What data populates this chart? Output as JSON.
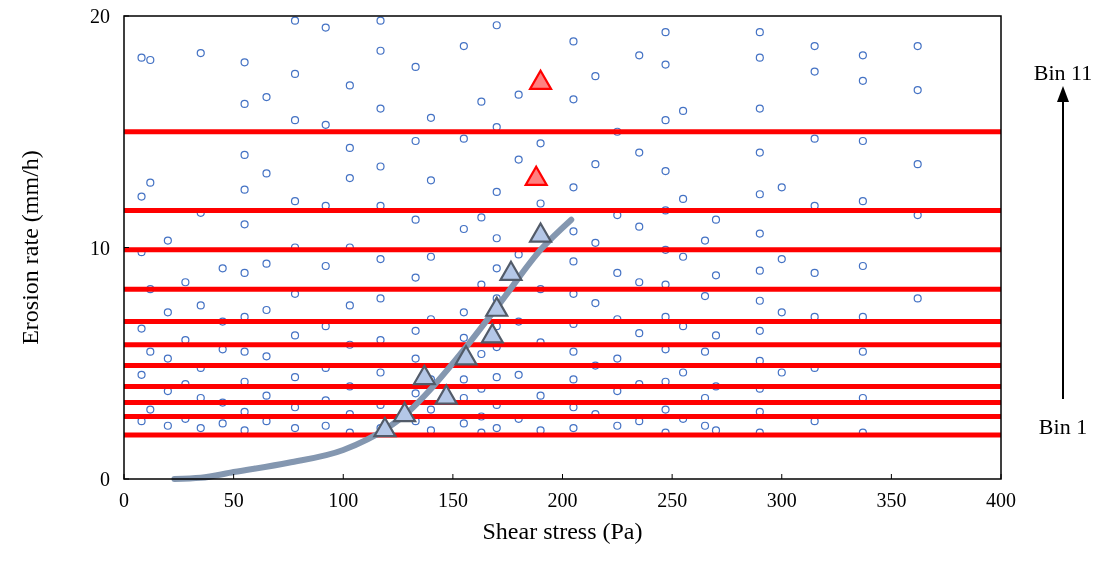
{
  "chart_data": {
    "type": "scatter",
    "xlabel": "Shear stress (Pa)",
    "ylabel": "Erosion rate (mm/h)",
    "xlim": [
      0,
      400
    ],
    "xticks": [
      0,
      50,
      100,
      150,
      200,
      250,
      300,
      350,
      400
    ],
    "ylim": [
      0,
      20
    ],
    "yticks": [
      0,
      10,
      20
    ],
    "grid": false,
    "ref_lines": [
      {
        "axis": "y",
        "value": 1.9,
        "color": "#ff0000"
      },
      {
        "axis": "y",
        "value": 2.7,
        "color": "#ff0000"
      },
      {
        "axis": "y",
        "value": 3.3,
        "color": "#ff0000"
      },
      {
        "axis": "y",
        "value": 4,
        "color": "#ff0000"
      },
      {
        "axis": "y",
        "value": 4.9,
        "color": "#ff0000"
      },
      {
        "axis": "y",
        "value": 5.8,
        "color": "#ff0000"
      },
      {
        "axis": "y",
        "value": 6.8,
        "color": "#ff0000"
      },
      {
        "axis": "y",
        "value": 8.2,
        "color": "#ff0000"
      },
      {
        "axis": "y",
        "value": 9.9,
        "color": "#ff0000"
      },
      {
        "axis": "y",
        "value": 11.6,
        "color": "#ff0000"
      },
      {
        "axis": "y",
        "value": 15,
        "color": "#ff0000"
      }
    ],
    "annotations": [
      "Bin 11",
      "Bin 1"
    ],
    "series": [
      {
        "marker": "circle",
        "color": "#4472c4",
        "x": [
          8,
          8,
          8,
          8,
          8,
          8,
          12,
          12,
          12,
          12,
          12,
          20,
          20,
          20,
          20,
          20,
          28,
          28,
          28,
          28,
          35,
          35,
          35,
          35,
          35,
          35,
          45,
          45,
          45,
          45,
          45,
          55,
          55,
          55,
          55,
          55,
          55,
          55,
          55,
          55,
          55,
          55,
          65,
          65,
          65,
          65,
          65,
          65,
          65,
          78,
          78,
          78,
          78,
          78,
          78,
          78,
          78,
          78,
          78,
          92,
          92,
          92,
          92,
          92,
          92,
          92,
          92,
          103,
          103,
          103,
          103,
          103,
          103,
          103,
          103,
          103,
          117,
          117,
          117,
          117,
          117,
          117,
          117,
          117,
          117,
          117,
          117,
          133,
          133,
          133,
          133,
          133,
          133,
          133,
          133,
          140,
          140,
          140,
          140,
          140,
          140,
          140,
          155,
          155,
          155,
          155,
          155,
          155,
          155,
          155,
          163,
          163,
          163,
          163,
          163,
          163,
          163,
          170,
          170,
          170,
          170,
          170,
          170,
          170,
          170,
          170,
          170,
          170,
          180,
          180,
          180,
          180,
          180,
          180,
          190,
          190,
          190,
          190,
          190,
          190,
          205,
          205,
          205,
          205,
          205,
          205,
          205,
          205,
          205,
          205,
          205,
          215,
          215,
          215,
          215,
          215,
          215,
          225,
          225,
          225,
          225,
          225,
          225,
          225,
          235,
          235,
          235,
          235,
          235,
          235,
          235,
          247,
          247,
          247,
          247,
          247,
          247,
          247,
          247,
          247,
          247,
          247,
          247,
          255,
          255,
          255,
          255,
          255,
          255,
          265,
          265,
          265,
          265,
          265,
          270,
          270,
          270,
          270,
          270,
          290,
          290,
          290,
          290,
          290,
          290,
          290,
          290,
          290,
          290,
          290,
          290,
          290,
          300,
          300,
          300,
          300,
          315,
          315,
          315,
          315,
          315,
          315,
          315,
          315,
          337,
          337,
          337,
          337,
          337,
          337,
          337,
          337,
          337,
          362,
          362,
          362,
          362,
          362
        ],
        "values": [
          2.5,
          4.5,
          6.5,
          9.8,
          12.2,
          18.2,
          3,
          5.5,
          8.2,
          12.8,
          18.1,
          2.3,
          3.8,
          5.2,
          7.2,
          10.3,
          2.6,
          4.1,
          6,
          8.5,
          2.2,
          3.5,
          4.8,
          7.5,
          11.5,
          18.4,
          2.4,
          3.3,
          5.6,
          6.8,
          9.1,
          2.1,
          2.9,
          4.2,
          5.5,
          7,
          8.9,
          11,
          12.5,
          14,
          16.2,
          18,
          2.5,
          3.6,
          5.3,
          7.3,
          9.3,
          13.2,
          16.5,
          2.2,
          3.1,
          4.4,
          6.2,
          8,
          10,
          12,
          15.5,
          17.5,
          19.8,
          2.3,
          3.4,
          4.8,
          6.6,
          9.2,
          11.8,
          15.3,
          19.5,
          2,
          2.8,
          4,
          5.8,
          7.5,
          10,
          13,
          14.3,
          17,
          2.2,
          3.2,
          4.6,
          6,
          7.8,
          9.5,
          11.8,
          13.5,
          16,
          18.5,
          19.8,
          2.5,
          3.7,
          5.2,
          6.4,
          8.7,
          11.2,
          14.6,
          17.8,
          2.1,
          3,
          4.3,
          6.9,
          9.6,
          12.9,
          15.6,
          2.4,
          3.5,
          4.3,
          6.1,
          7.2,
          10.8,
          14.7,
          18.7,
          2,
          2.7,
          3.9,
          5.4,
          8.4,
          11.3,
          16.3,
          2.2,
          3.2,
          4.4,
          5.7,
          6.6,
          7.8,
          9.1,
          10.4,
          12.4,
          15.2,
          19.6,
          2.6,
          4.5,
          6.8,
          9.7,
          13.8,
          16.6,
          2.1,
          3.6,
          5.9,
          8.2,
          11.9,
          14.5,
          2.2,
          3.1,
          4.3,
          5.5,
          6.7,
          8,
          9.4,
          10.7,
          12.6,
          16.4,
          18.9,
          2.8,
          4.9,
          7.6,
          10.2,
          13.6,
          17.4,
          2.3,
          3.8,
          5.2,
          6.9,
          8.9,
          11.4,
          15,
          2.5,
          4.1,
          6.3,
          8.5,
          10.9,
          14.1,
          18.3,
          2,
          3,
          4.2,
          5.6,
          7,
          8.4,
          9.9,
          11.6,
          13.3,
          15.5,
          17.9,
          19.3,
          2.6,
          4.6,
          6.6,
          9.6,
          12.1,
          15.9,
          2.3,
          3.5,
          5.5,
          7.9,
          10.3,
          2.1,
          4,
          6.2,
          8.8,
          11.2,
          2,
          2.9,
          3.9,
          5.1,
          6.4,
          7.7,
          9,
          10.6,
          12.3,
          14.1,
          16,
          18.2,
          19.3,
          4.6,
          7.2,
          9.5,
          12.6,
          2.5,
          4.8,
          7,
          8.9,
          11.8,
          14.7,
          17.6,
          18.7,
          2,
          3.5,
          5.5,
          7,
          9.2,
          12,
          14.6,
          17.2,
          18.3,
          7.8,
          11.4,
          13.6,
          16.8,
          18.7
        ]
      },
      {
        "type": "line",
        "color": "#8497b0",
        "x": [
          23,
          35,
          50,
          75,
          100,
          120,
          128,
          141,
          156,
          171.5,
          190,
          204
        ],
        "values": [
          0,
          0.05,
          0.3,
          0.7,
          1.25,
          2.2,
          2.76,
          4,
          5.7,
          7.6,
          9.9,
          11.2
        ]
      },
      {
        "marker": "triangle",
        "color": "#b4c7e7",
        "x": [
          119,
          128,
          137,
          147,
          156,
          168,
          170,
          176.5,
          190
        ],
        "values": [
          2.2,
          2.85,
          4.45,
          3.6,
          5.3,
          6.25,
          7.4,
          8.95,
          10.6
        ]
      },
      {
        "marker": "triangle",
        "color": "#ff8080",
        "x": [
          188,
          190
        ],
        "values": [
          13.05,
          17.2
        ]
      }
    ]
  }
}
